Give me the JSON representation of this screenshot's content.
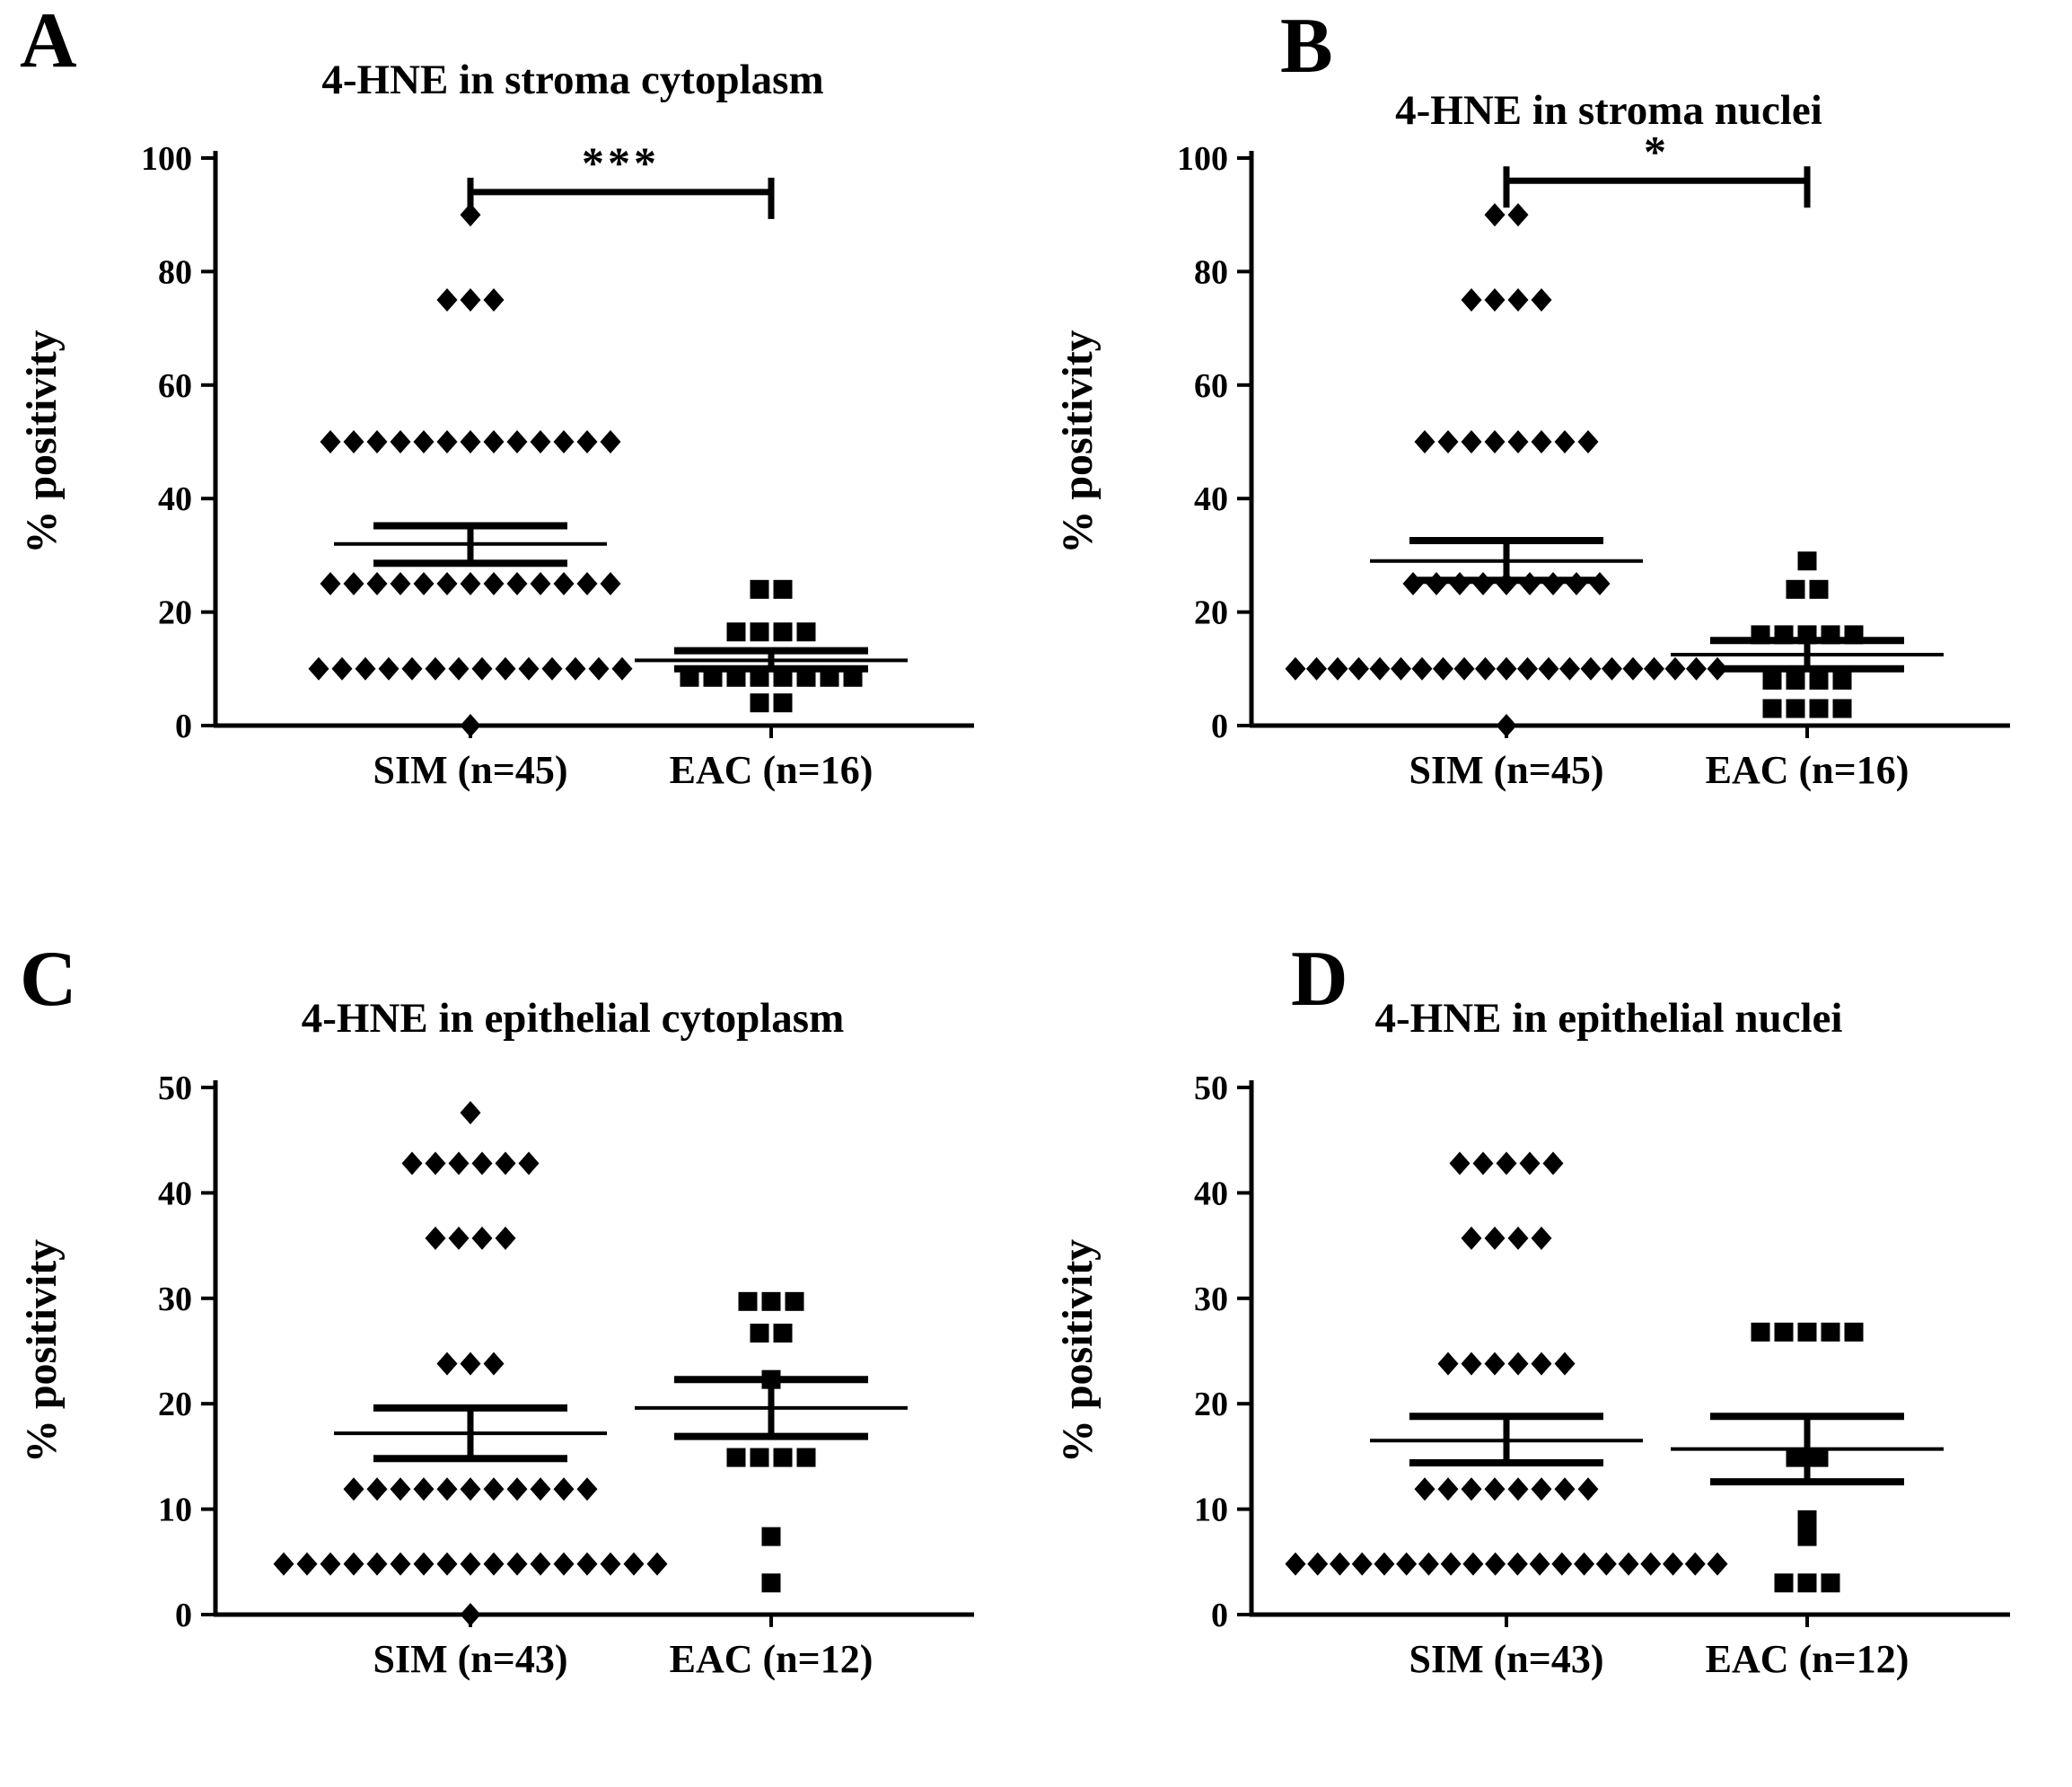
{
  "figure_background": "#ffffff",
  "colors": {
    "marker": "#000000",
    "axis": "#000000",
    "text": "#000000"
  },
  "chart_data": [
    {
      "type": "scatter",
      "panel_letter": "A",
      "title": "4-HNE in stroma cytoplasm",
      "ylabel": "% positivity",
      "ylim": [
        0,
        100
      ],
      "yticks": [
        0,
        20,
        40,
        60,
        80,
        100
      ],
      "grid": false,
      "significance": {
        "label": "***",
        "y": 94
      },
      "groups": [
        {
          "label": "SIM (n=45)",
          "marker": "diamond",
          "n": 45,
          "mean": 32.0,
          "sem_low": 28.6,
          "sem_high": 35.2,
          "rows": [
            {
              "y": 90,
              "n": 1
            },
            {
              "y": 75,
              "n": 3
            },
            {
              "y": 50,
              "n": 13
            },
            {
              "y": 25,
              "n": 13
            },
            {
              "y": 10,
              "n": 14
            },
            {
              "y": 0,
              "n": 1
            }
          ]
        },
        {
          "label": "EAC (n=16)",
          "marker": "square",
          "n": 16,
          "mean": 11.5,
          "sem_low": 10.0,
          "sem_high": 13.2,
          "rows": [
            {
              "y": 24,
              "n": 2
            },
            {
              "y": 16.5,
              "n": 4
            },
            {
              "y": 8.5,
              "n": 8
            },
            {
              "y": 4,
              "n": 2
            }
          ]
        }
      ]
    },
    {
      "type": "scatter",
      "panel_letter": "B",
      "title": "4-HNE in stroma nuclei",
      "ylabel": "% positivity",
      "ylim": [
        0,
        100
      ],
      "yticks": [
        0,
        20,
        40,
        60,
        80,
        100
      ],
      "grid": false,
      "significance": {
        "label": "*",
        "y": 96
      },
      "groups": [
        {
          "label": "SIM (n=45)",
          "marker": "diamond",
          "n": 45,
          "mean": 29.0,
          "sem_low": 25.6,
          "sem_high": 32.6,
          "rows": [
            {
              "y": 90,
              "n": 2
            },
            {
              "y": 75,
              "n": 4
            },
            {
              "y": 50,
              "n": 8
            },
            {
              "y": 25,
              "n": 9
            },
            {
              "y": 10,
              "n": 21
            },
            {
              "y": 0,
              "n": 1
            }
          ]
        },
        {
          "label": "EAC (n=16)",
          "marker": "square",
          "n": 16,
          "mean": 12.5,
          "sem_low": 10.0,
          "sem_high": 15.0,
          "rows": [
            {
              "y": 29,
              "n": 1
            },
            {
              "y": 24,
              "n": 2
            },
            {
              "y": 16,
              "n": 5
            },
            {
              "y": 8,
              "n": 4
            },
            {
              "y": 3,
              "n": 4
            }
          ]
        }
      ]
    },
    {
      "type": "scatter",
      "panel_letter": "C",
      "title": "4-HNE in epithelial cytoplasm",
      "ylabel": "% positivity",
      "ylim": [
        0,
        50
      ],
      "yticks": [
        0,
        10,
        20,
        30,
        40,
        50
      ],
      "grid": false,
      "significance": null,
      "groups": [
        {
          "label": "SIM (n=43)",
          "marker": "diamond",
          "n": 43,
          "mean": 17.2,
          "sem_low": 14.8,
          "sem_high": 19.6,
          "rows": [
            {
              "y": 47.6,
              "n": 1
            },
            {
              "y": 42.8,
              "n": 6
            },
            {
              "y": 35.7,
              "n": 4
            },
            {
              "y": 23.8,
              "n": 3
            },
            {
              "y": 11.9,
              "n": 11
            },
            {
              "y": 4.8,
              "n": 17
            },
            {
              "y": 0,
              "n": 1
            }
          ]
        },
        {
          "label": "EAC (n=12)",
          "marker": "square",
          "n": 12,
          "mean": 19.6,
          "sem_low": 16.9,
          "sem_high": 22.3,
          "rows": [
            {
              "y": 29.7,
              "n": 3
            },
            {
              "y": 26.7,
              "n": 2
            },
            {
              "y": 22.3,
              "n": 1
            },
            {
              "y": 14.9,
              "n": 4
            },
            {
              "y": 7.4,
              "n": 1
            },
            {
              "y": 3,
              "n": 1
            }
          ]
        }
      ]
    },
    {
      "type": "scatter",
      "panel_letter": "D",
      "title": "4-HNE in epithelial nuclei",
      "ylabel": "% positivity",
      "ylim": [
        0,
        50
      ],
      "yticks": [
        0,
        10,
        20,
        30,
        40,
        50
      ],
      "grid": false,
      "significance": null,
      "groups": [
        {
          "label": "SIM (n=43)",
          "marker": "diamond",
          "n": 43,
          "mean": 16.5,
          "sem_low": 14.4,
          "sem_high": 18.8,
          "rows": [
            {
              "y": 42.8,
              "n": 5
            },
            {
              "y": 35.7,
              "n": 4
            },
            {
              "y": 23.8,
              "n": 6
            },
            {
              "y": 11.9,
              "n": 8
            },
            {
              "y": 4.8,
              "n": 20
            }
          ]
        },
        {
          "label": "EAC (n=12)",
          "marker": "square",
          "n": 12,
          "mean": 15.7,
          "sem_low": 12.6,
          "sem_high": 18.8,
          "rows": [
            {
              "y": 26.8,
              "n": 5
            },
            {
              "y": 14.9,
              "n": 2
            },
            {
              "y": 9,
              "n": 1
            },
            {
              "y": 7.4,
              "n": 1
            },
            {
              "y": 3,
              "n": 3
            }
          ]
        }
      ]
    }
  ]
}
